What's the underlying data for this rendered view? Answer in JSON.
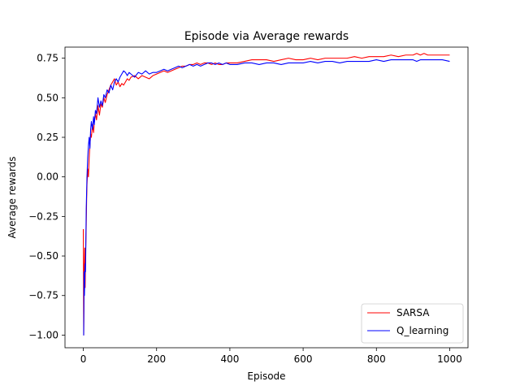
{
  "chart_data": {
    "type": "line",
    "title": "Episode via Average rewards",
    "xlabel": "Episode",
    "ylabel": "Average rewards",
    "xlim": [
      -50,
      1050
    ],
    "ylim": [
      -1.08,
      0.82
    ],
    "xticks": [
      0,
      200,
      400,
      600,
      800,
      1000
    ],
    "xtick_labels": [
      "0",
      "200",
      "400",
      "600",
      "800",
      "1000"
    ],
    "yticks": [
      -1.0,
      -0.75,
      -0.5,
      -0.25,
      0.0,
      0.25,
      0.5,
      0.75
    ],
    "ytick_labels": [
      "−1.00",
      "−0.75",
      "−0.50",
      "−0.25",
      "0.00",
      "0.25",
      "0.50",
      "0.75"
    ],
    "grid": false,
    "legend_position": "lower-right",
    "series": [
      {
        "name": "SARSA",
        "color": "#ff0000",
        "x": [
          0,
          1,
          2,
          3,
          4,
          5,
          6,
          7,
          8,
          9,
          10,
          12,
          14,
          16,
          18,
          20,
          22,
          25,
          28,
          30,
          33,
          36,
          40,
          44,
          48,
          52,
          56,
          60,
          65,
          70,
          75,
          80,
          85,
          90,
          95,
          100,
          105,
          110,
          115,
          120,
          125,
          130,
          140,
          150,
          160,
          170,
          180,
          190,
          200,
          210,
          220,
          230,
          240,
          250,
          260,
          270,
          280,
          290,
          300,
          310,
          320,
          330,
          340,
          350,
          360,
          370,
          380,
          390,
          400,
          420,
          440,
          460,
          480,
          500,
          520,
          540,
          560,
          580,
          600,
          620,
          640,
          660,
          680,
          700,
          720,
          740,
          760,
          780,
          800,
          820,
          840,
          860,
          880,
          900,
          910,
          920,
          930,
          940,
          960,
          980,
          1000
        ],
        "values": [
          -0.33,
          -1.0,
          -0.75,
          -0.55,
          -0.45,
          -0.7,
          -0.5,
          -0.4,
          -0.3,
          -0.15,
          -0.05,
          0.05,
          0.0,
          0.12,
          0.2,
          0.27,
          0.25,
          0.33,
          0.28,
          0.35,
          0.4,
          0.36,
          0.45,
          0.39,
          0.46,
          0.44,
          0.5,
          0.47,
          0.52,
          0.55,
          0.58,
          0.6,
          0.62,
          0.58,
          0.6,
          0.57,
          0.59,
          0.58,
          0.6,
          0.62,
          0.61,
          0.63,
          0.64,
          0.62,
          0.64,
          0.63,
          0.62,
          0.64,
          0.65,
          0.66,
          0.67,
          0.66,
          0.67,
          0.68,
          0.69,
          0.7,
          0.7,
          0.71,
          0.71,
          0.72,
          0.71,
          0.72,
          0.72,
          0.71,
          0.72,
          0.71,
          0.71,
          0.72,
          0.72,
          0.72,
          0.73,
          0.74,
          0.74,
          0.74,
          0.73,
          0.74,
          0.75,
          0.74,
          0.74,
          0.75,
          0.74,
          0.75,
          0.75,
          0.75,
          0.75,
          0.76,
          0.75,
          0.76,
          0.76,
          0.76,
          0.77,
          0.76,
          0.77,
          0.77,
          0.78,
          0.77,
          0.78,
          0.77,
          0.77,
          0.77,
          0.77
        ]
      },
      {
        "name": "Q_learning",
        "color": "#0000ff",
        "x": [
          0,
          1,
          2,
          3,
          4,
          5,
          6,
          7,
          8,
          9,
          10,
          12,
          14,
          16,
          18,
          20,
          22,
          25,
          28,
          30,
          33,
          36,
          40,
          44,
          48,
          52,
          56,
          60,
          65,
          70,
          75,
          80,
          85,
          90,
          95,
          100,
          105,
          110,
          115,
          120,
          125,
          130,
          140,
          150,
          160,
          170,
          180,
          190,
          200,
          210,
          220,
          230,
          240,
          250,
          260,
          270,
          280,
          290,
          300,
          310,
          320,
          330,
          340,
          350,
          360,
          370,
          380,
          390,
          400,
          420,
          440,
          460,
          480,
          500,
          520,
          540,
          560,
          580,
          600,
          620,
          640,
          660,
          680,
          700,
          720,
          740,
          760,
          780,
          800,
          820,
          840,
          860,
          880,
          900,
          910,
          920,
          930,
          940,
          960,
          980,
          1000
        ],
        "values": [
          -1.0,
          -1.0,
          -0.6,
          -0.75,
          -0.65,
          -0.55,
          -0.6,
          -0.4,
          -0.2,
          -0.1,
          0.0,
          0.12,
          0.2,
          0.25,
          0.18,
          0.3,
          0.35,
          0.3,
          0.38,
          0.33,
          0.42,
          0.4,
          0.5,
          0.44,
          0.48,
          0.45,
          0.52,
          0.5,
          0.55,
          0.53,
          0.58,
          0.55,
          0.6,
          0.62,
          0.6,
          0.63,
          0.65,
          0.67,
          0.66,
          0.64,
          0.66,
          0.65,
          0.63,
          0.66,
          0.65,
          0.67,
          0.65,
          0.66,
          0.66,
          0.67,
          0.68,
          0.67,
          0.68,
          0.69,
          0.7,
          0.69,
          0.7,
          0.71,
          0.7,
          0.71,
          0.7,
          0.71,
          0.72,
          0.72,
          0.71,
          0.72,
          0.71,
          0.72,
          0.71,
          0.71,
          0.72,
          0.72,
          0.71,
          0.72,
          0.72,
          0.71,
          0.72,
          0.72,
          0.72,
          0.73,
          0.72,
          0.73,
          0.73,
          0.72,
          0.73,
          0.73,
          0.73,
          0.73,
          0.74,
          0.73,
          0.74,
          0.74,
          0.74,
          0.74,
          0.73,
          0.74,
          0.74,
          0.74,
          0.74,
          0.74,
          0.73
        ]
      }
    ]
  }
}
